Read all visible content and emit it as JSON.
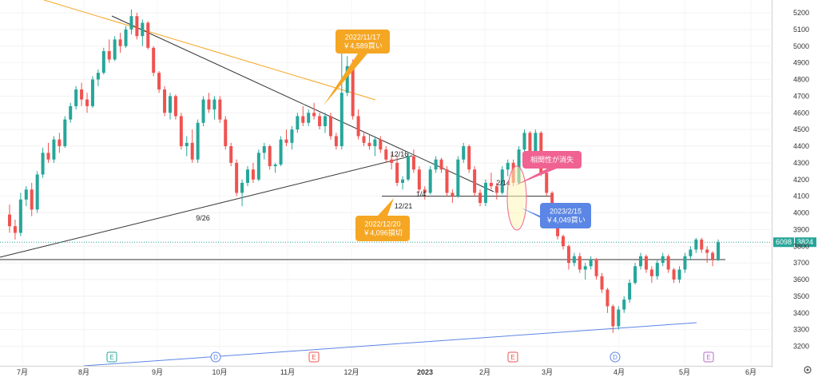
{
  "chart_data": {
    "type": "candlestick",
    "title": "",
    "xlabel": "",
    "ylabel": "",
    "ylim": [
      3180,
      5240
    ],
    "x_ticks": [
      "7月",
      "8月",
      "9月",
      "10月",
      "11月",
      "12月",
      "2023",
      "2月",
      "3月",
      "4月",
      "5月",
      "6月"
    ],
    "y_ticks": [
      5200,
      5100,
      5000,
      4900,
      4800,
      4700,
      4600,
      4500,
      4400,
      4300,
      4200,
      4100,
      4000,
      3900,
      3800,
      3700,
      3600,
      3500,
      3400,
      3300,
      3200
    ],
    "colors": {
      "up": "#26a69a",
      "down": "#ef5350",
      "trend": "#333333",
      "resistance": "#f5a623",
      "support": "#5b86e5",
      "price_line": "#26a69a"
    },
    "price_label": {
      "left": "6098",
      "right": "3824",
      "value": 3824
    },
    "series": [
      {
        "ohlc": [
          [
            3990,
            4050,
            3880,
            3920
          ],
          [
            3920,
            3960,
            3840,
            3880
          ],
          [
            3880,
            4120,
            3860,
            4080
          ],
          [
            4080,
            4160,
            4040,
            4140
          ],
          [
            4140,
            4180,
            3980,
            4020
          ],
          [
            4020,
            4250,
            4000,
            4230
          ],
          [
            4230,
            4390,
            4210,
            4360
          ],
          [
            4360,
            4420,
            4300,
            4320
          ],
          [
            4320,
            4460,
            4300,
            4440
          ],
          [
            4440,
            4480,
            4360,
            4400
          ],
          [
            4400,
            4580,
            4390,
            4560
          ],
          [
            4560,
            4660,
            4540,
            4640
          ],
          [
            4640,
            4760,
            4620,
            4740
          ],
          [
            4740,
            4780,
            4640,
            4680
          ],
          [
            4680,
            4720,
            4600,
            4640
          ],
          [
            4640,
            4820,
            4630,
            4800
          ],
          [
            4800,
            4860,
            4760,
            4840
          ],
          [
            4840,
            4990,
            4830,
            4970
          ],
          [
            4970,
            5040,
            4900,
            4920
          ],
          [
            4920,
            5060,
            4910,
            5040
          ],
          [
            5040,
            5080,
            4960,
            5000
          ],
          [
            5000,
            5120,
            4990,
            5100
          ],
          [
            5100,
            5220,
            5070,
            5180
          ],
          [
            5180,
            5200,
            5040,
            5060
          ],
          [
            5060,
            5160,
            5000,
            5140
          ],
          [
            5140,
            5150,
            4980,
            4990
          ],
          [
            4990,
            5000,
            4820,
            4840
          ],
          [
            4840,
            4850,
            4720,
            4740
          ],
          [
            4740,
            4760,
            4580,
            4600
          ],
          [
            4600,
            4720,
            4560,
            4700
          ],
          [
            4700,
            4710,
            4560,
            4580
          ],
          [
            4580,
            4600,
            4380,
            4400
          ],
          [
            4400,
            4460,
            4340,
            4420
          ],
          [
            4420,
            4500,
            4300,
            4320
          ],
          [
            4320,
            4560,
            4300,
            4540
          ],
          [
            4540,
            4700,
            4520,
            4680
          ],
          [
            4680,
            4720,
            4600,
            4620
          ],
          [
            4620,
            4700,
            4560,
            4680
          ],
          [
            4680,
            4700,
            4540,
            4560
          ],
          [
            4560,
            4580,
            4380,
            4400
          ],
          [
            4400,
            4420,
            4280,
            4300
          ],
          [
            4300,
            4320,
            4100,
            4120
          ],
          [
            4120,
            4200,
            4040,
            4180
          ],
          [
            4180,
            4280,
            4160,
            4260
          ],
          [
            4260,
            4300,
            4180,
            4200
          ],
          [
            4200,
            4380,
            4190,
            4360
          ],
          [
            4360,
            4420,
            4320,
            4400
          ],
          [
            4400,
            4410,
            4260,
            4280
          ],
          [
            4280,
            4300,
            4240,
            4290
          ],
          [
            4290,
            4460,
            4280,
            4440
          ],
          [
            4440,
            4500,
            4400,
            4420
          ],
          [
            4420,
            4520,
            4380,
            4500
          ],
          [
            4500,
            4600,
            4480,
            4580
          ],
          [
            4580,
            4640,
            4520,
            4540
          ],
          [
            4540,
            4620,
            4520,
            4600
          ],
          [
            4600,
            4660,
            4560,
            4580
          ],
          [
            4580,
            4600,
            4500,
            4520
          ],
          [
            4520,
            4600,
            4480,
            4580
          ],
          [
            4580,
            4600,
            4440,
            4460
          ],
          [
            4460,
            4480,
            4380,
            4400
          ],
          [
            4400,
            4960,
            4380,
            4720
          ],
          [
            4720,
            4940,
            4700,
            4880
          ],
          [
            4880,
            4920,
            4560,
            4580
          ],
          [
            4580,
            4620,
            4440,
            4460
          ],
          [
            4460,
            4480,
            4400,
            4420
          ],
          [
            4420,
            4470,
            4380,
            4400
          ],
          [
            4400,
            4460,
            4340,
            4440
          ],
          [
            4440,
            4460,
            4360,
            4380
          ],
          [
            4380,
            4400,
            4300,
            4320
          ],
          [
            4320,
            4360,
            4260,
            4300
          ],
          [
            4300,
            4340,
            4160,
            4180
          ],
          [
            4180,
            4220,
            4140,
            4200
          ],
          [
            4200,
            4360,
            4190,
            4340
          ],
          [
            4340,
            4380,
            4240,
            4260
          ],
          [
            4260,
            4280,
            4120,
            4140
          ],
          [
            4140,
            4160,
            4080,
            4120
          ],
          [
            4120,
            4280,
            4110,
            4260
          ],
          [
            4260,
            4340,
            4240,
            4320
          ],
          [
            4320,
            4330,
            4240,
            4260
          ],
          [
            4260,
            4280,
            4100,
            4120
          ],
          [
            4120,
            4140,
            4060,
            4100
          ],
          [
            4100,
            4340,
            4090,
            4320
          ],
          [
            4320,
            4420,
            4300,
            4400
          ],
          [
            4400,
            4410,
            4240,
            4260
          ],
          [
            4260,
            4280,
            4100,
            4120
          ],
          [
            4120,
            4140,
            4040,
            4060
          ],
          [
            4060,
            4200,
            4040,
            4180
          ],
          [
            4180,
            4240,
            4140,
            4160
          ],
          [
            4160,
            4180,
            4080,
            4120
          ],
          [
            4120,
            4280,
            4110,
            4260
          ],
          [
            4260,
            4320,
            4220,
            4300
          ],
          [
            4300,
            4320,
            4160,
            4180
          ],
          [
            4180,
            4400,
            4170,
            4380
          ],
          [
            4380,
            4500,
            4360,
            4480
          ],
          [
            4480,
            4490,
            4320,
            4340
          ],
          [
            4340,
            4500,
            4320,
            4480
          ],
          [
            4480,
            4490,
            4220,
            4240
          ],
          [
            4240,
            4250,
            4100,
            4120
          ],
          [
            4120,
            4130,
            4020,
            4040
          ],
          [
            4040,
            4050,
            3840,
            3860
          ],
          [
            3860,
            3870,
            3780,
            3800
          ],
          [
            3800,
            3810,
            3660,
            3700
          ],
          [
            3700,
            3760,
            3680,
            3740
          ],
          [
            3740,
            3760,
            3640,
            3660
          ],
          [
            3660,
            3700,
            3600,
            3680
          ],
          [
            3680,
            3740,
            3660,
            3720
          ],
          [
            3720,
            3730,
            3600,
            3620
          ],
          [
            3620,
            3640,
            3520,
            3540
          ],
          [
            3540,
            3550,
            3400,
            3440
          ],
          [
            3440,
            3450,
            3280,
            3320
          ],
          [
            3320,
            3440,
            3300,
            3420
          ],
          [
            3420,
            3500,
            3400,
            3480
          ],
          [
            3480,
            3600,
            3460,
            3580
          ],
          [
            3580,
            3700,
            3570,
            3680
          ],
          [
            3680,
            3760,
            3660,
            3740
          ],
          [
            3740,
            3750,
            3640,
            3660
          ],
          [
            3660,
            3680,
            3580,
            3620
          ],
          [
            3620,
            3720,
            3600,
            3700
          ],
          [
            3700,
            3760,
            3680,
            3740
          ],
          [
            3740,
            3750,
            3640,
            3660
          ],
          [
            3660,
            3670,
            3580,
            3600
          ],
          [
            3600,
            3680,
            3580,
            3660
          ],
          [
            3660,
            3760,
            3640,
            3740
          ],
          [
            3740,
            3800,
            3720,
            3780
          ],
          [
            3780,
            3850,
            3760,
            3840
          ],
          [
            3840,
            3850,
            3760,
            3780
          ],
          [
            3780,
            3800,
            3700,
            3760
          ],
          [
            3760,
            3770,
            3680,
            3720
          ],
          [
            3720,
            3840,
            3710,
            3824
          ]
        ]
      }
    ],
    "annotations": [
      {
        "text": "2022/11/17\n￥4,589買い",
        "color": "#f5a623",
        "value": 4589
      },
      {
        "text": "2022/12/20\n￥4,096損切",
        "color": "#f5a623",
        "value": 4096
      },
      {
        "text": "2023/2/15\n￥4,049買い",
        "color": "#5b86e5",
        "value": 4049
      },
      {
        "text": "相関性が消失",
        "color": "#f06292"
      }
    ],
    "date_labels": [
      "9/26",
      "12/16",
      "12/21",
      "1/4",
      "2/14"
    ],
    "events": [
      {
        "letter": "E",
        "color": "#26a69a"
      },
      {
        "letter": "D",
        "color": "#5b86e5"
      },
      {
        "letter": "E",
        "color": "#ef5350"
      },
      {
        "letter": "E",
        "color": "#ef5350"
      },
      {
        "letter": "D",
        "color": "#5b86e5"
      },
      {
        "letter": "E",
        "color": "#ba68c8"
      }
    ],
    "horizontal_levels": [
      4100,
      3720
    ]
  }
}
